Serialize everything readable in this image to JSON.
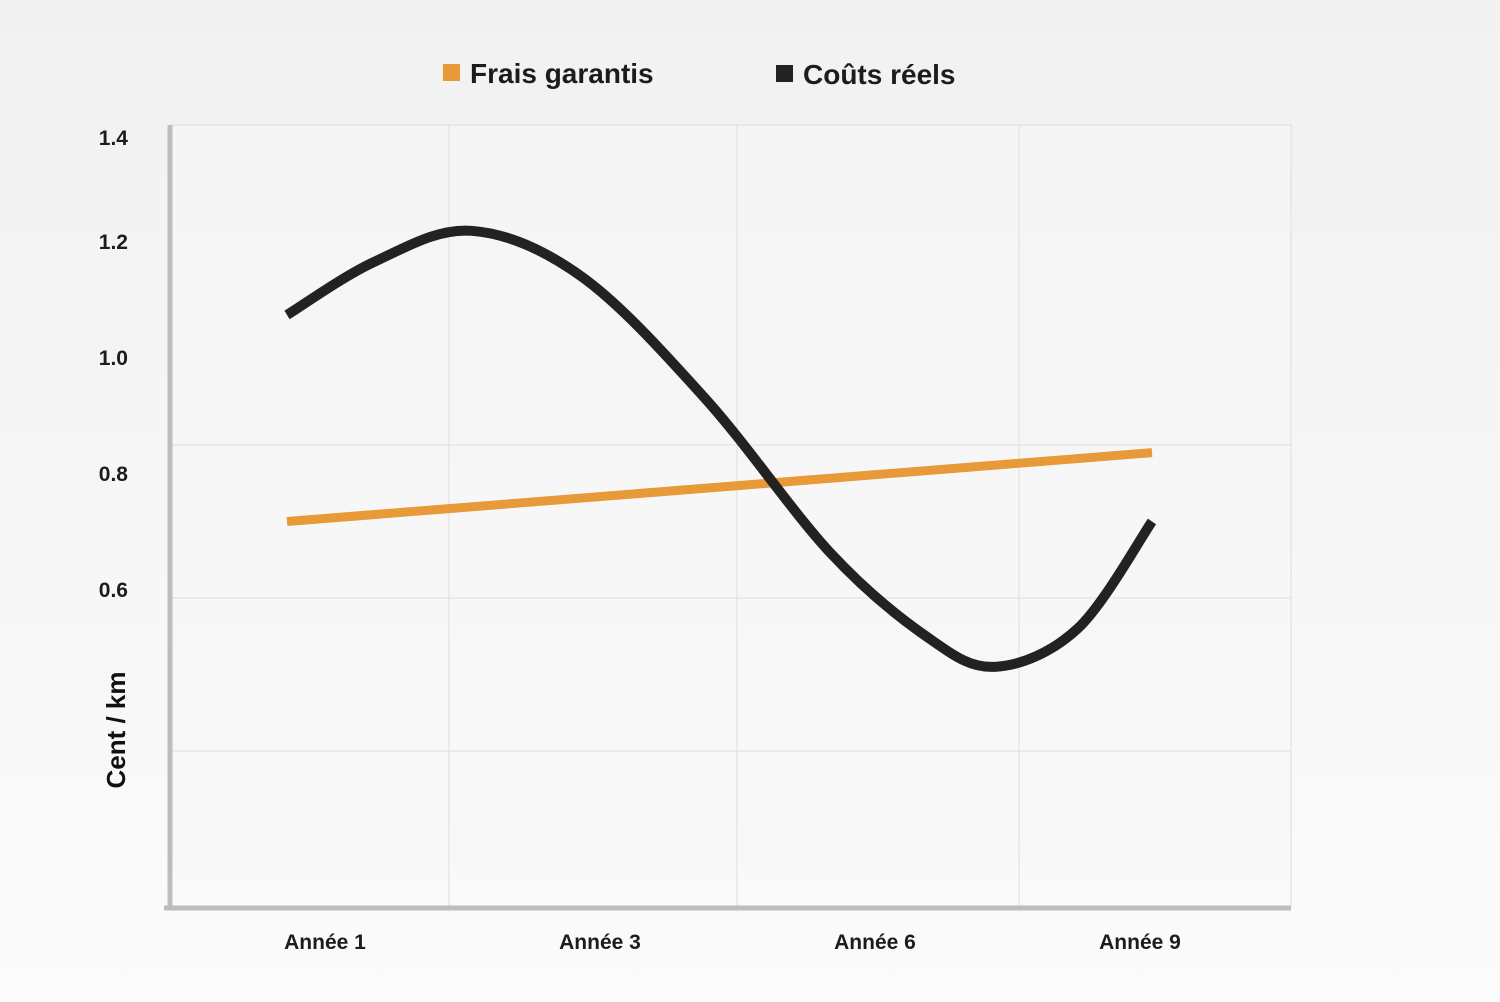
{
  "chart_data": {
    "type": "line",
    "categories": [
      "Année 1",
      "Année 3",
      "Année 6",
      "Année 9"
    ],
    "x_range": [
      0.5,
      4.45
    ],
    "y_ticks": [
      "1.4",
      "1.2",
      "1.0",
      "0.8",
      "0.6"
    ],
    "ylabel": "Cent / km",
    "xlabel": "",
    "title": "",
    "grid": true,
    "legend_position": "top-center",
    "series": [
      {
        "name": "Frais garantis",
        "color": "#e89a38",
        "points": [
          [
            0.93,
            0.7
          ],
          [
            4.07,
            0.79
          ]
        ]
      },
      {
        "name": "Coûts réels",
        "color": "#222222",
        "points": [
          [
            0.93,
            0.97
          ],
          [
            1.25,
            1.04
          ],
          [
            1.6,
            1.08
          ],
          [
            2.0,
            1.02
          ],
          [
            2.45,
            0.86
          ],
          [
            2.9,
            0.66
          ],
          [
            3.25,
            0.55
          ],
          [
            3.5,
            0.51
          ],
          [
            3.8,
            0.56
          ],
          [
            4.07,
            0.7
          ]
        ]
      }
    ]
  }
}
